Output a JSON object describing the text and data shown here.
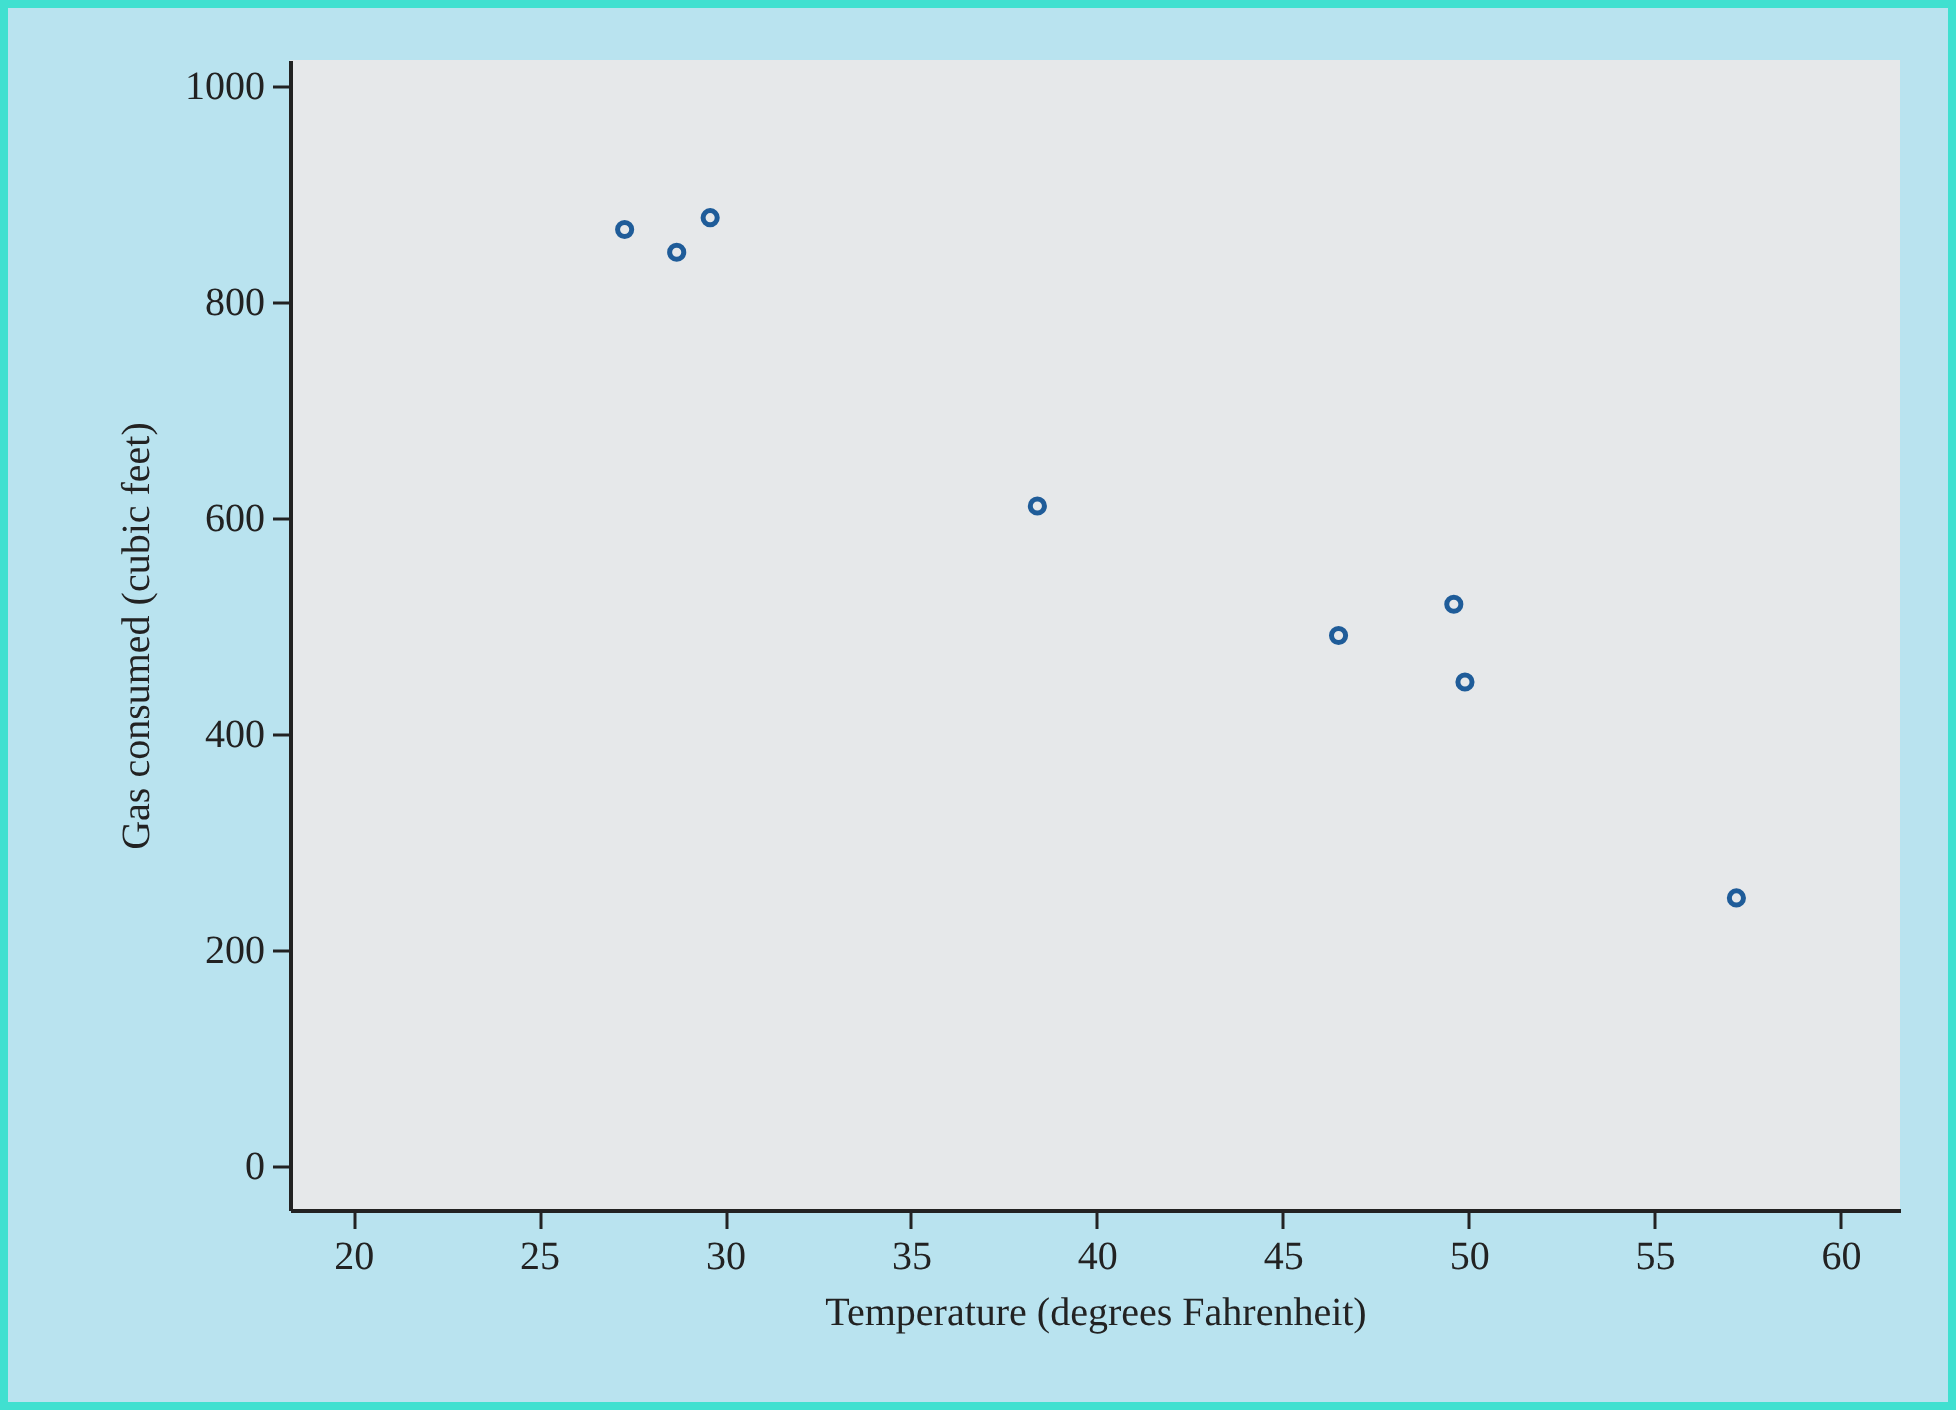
{
  "chart_data": {
    "type": "scatter",
    "xlabel": "Temperature (degrees Fahrenheit)",
    "ylabel": "Gas consumed (cubic feet)",
    "x": [
      27.3,
      28.7,
      29.6,
      38.4,
      46.5,
      49.6,
      49.9,
      57.2
    ],
    "series": [
      {
        "color": "#1f5c99",
        "values": [
          867,
          846,
          878,
          611,
          491,
          520,
          448,
          248
        ]
      }
    ],
    "xlim": [
      18.3,
      61.6
    ],
    "ylim": [
      -41,
      1024
    ],
    "xticks": [
      20,
      25,
      30,
      35,
      40,
      45,
      50,
      55,
      60
    ],
    "yticks": [
      0,
      200,
      400,
      600,
      800,
      1000
    ],
    "grid": false,
    "marker": "circle"
  }
}
